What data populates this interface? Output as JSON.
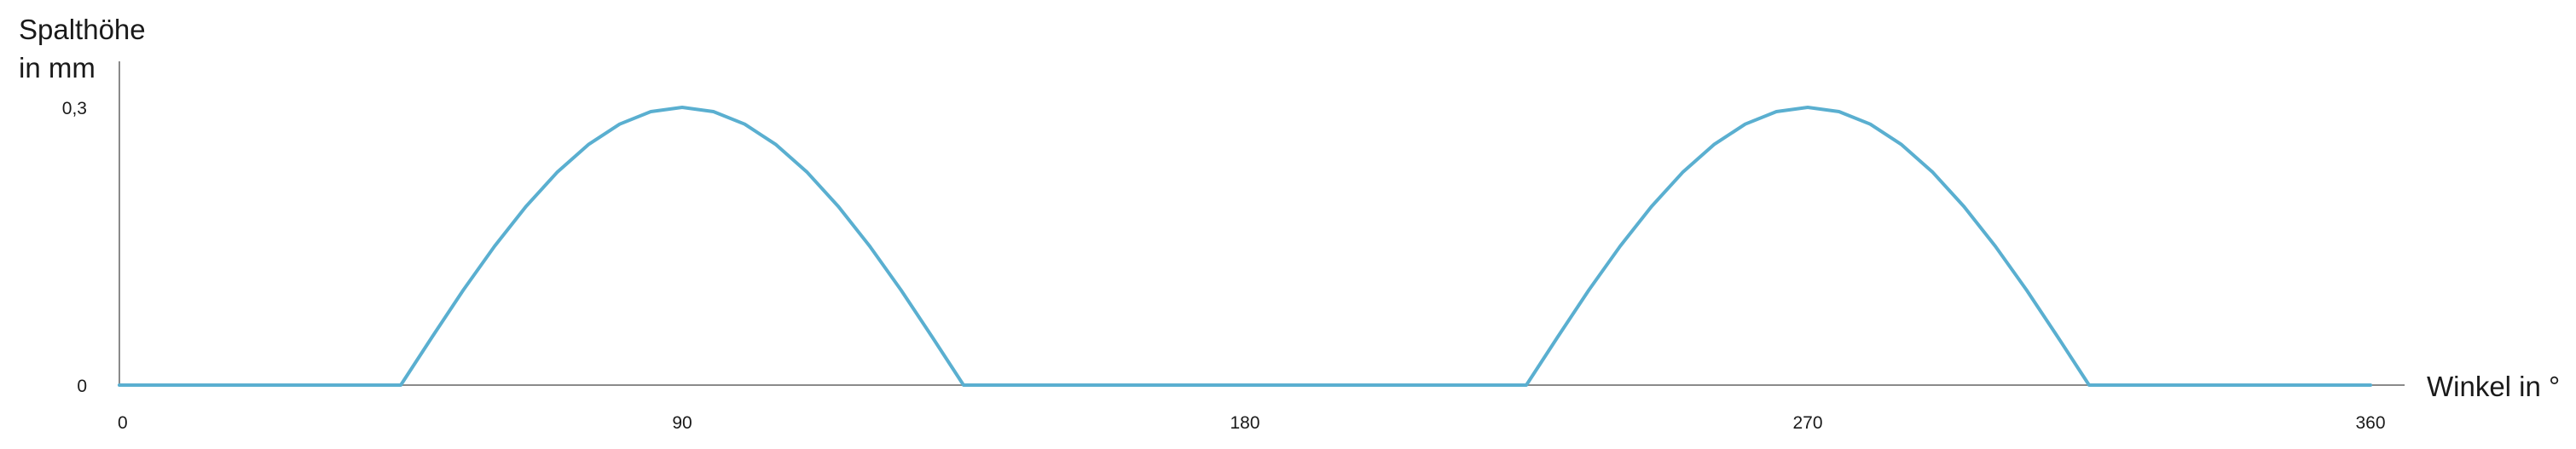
{
  "chart_data": {
    "type": "line",
    "title": "",
    "ylabel_line1": "Spalthöhe",
    "ylabel_line2": "in mm",
    "xlabel": "Winkel in °",
    "xlim": [
      0,
      360
    ],
    "ylim": [
      0,
      0.3
    ],
    "x_ticks": [
      {
        "value": 0,
        "label": "0"
      },
      {
        "value": 90,
        "label": "90"
      },
      {
        "value": 180,
        "label": "180"
      },
      {
        "value": 270,
        "label": "270"
      },
      {
        "value": 360,
        "label": "360"
      }
    ],
    "y_ticks": [
      {
        "value": 0,
        "label": "0"
      },
      {
        "value": 0.3,
        "label": "0,3"
      }
    ],
    "grid": false,
    "legend": "none",
    "series_color": "#5aafd0",
    "series": [
      {
        "x": [
          0,
          45,
          50,
          55,
          60,
          65,
          70,
          75,
          80,
          85,
          90,
          95,
          100,
          105,
          110,
          115,
          120,
          125,
          130,
          135,
          225,
          230,
          235,
          240,
          245,
          250,
          255,
          260,
          265,
          270,
          275,
          280,
          285,
          290,
          295,
          300,
          305,
          310,
          315,
          360
        ],
        "y": [
          0,
          0,
          0.0519,
          0.1026,
          0.15,
          0.1928,
          0.2298,
          0.2598,
          0.2819,
          0.2954,
          0.3,
          0.2954,
          0.2819,
          0.2598,
          0.2298,
          0.1928,
          0.15,
          0.1026,
          0.0519,
          0,
          0,
          0.0519,
          0.1026,
          0.15,
          0.1928,
          0.2298,
          0.2598,
          0.2819,
          0.2954,
          0.3,
          0.2954,
          0.2819,
          0.2598,
          0.2298,
          0.1928,
          0.15,
          0.1026,
          0.0519,
          0,
          0
        ]
      }
    ]
  }
}
